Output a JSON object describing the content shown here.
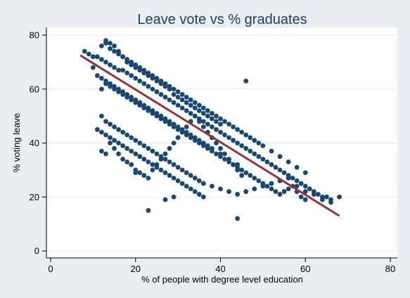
{
  "chart_data": {
    "type": "scatter",
    "title": "Leave vote vs % graduates",
    "xlabel": "% of people with degree level education",
    "ylabel": "% voting leave",
    "xlim": [
      0,
      80
    ],
    "ylim": [
      0,
      80
    ],
    "x_ticks": [
      "0",
      "20",
      "40",
      "60",
      "80"
    ],
    "y_ticks": [
      "0",
      "20",
      "40",
      "60",
      "80"
    ],
    "grid": true,
    "colors": {
      "points": "#1a476f",
      "fit_line": "#90353b",
      "background": "#e8eef2",
      "plot_background": "#ffffff"
    },
    "fit_line": {
      "x": [
        7,
        68
      ],
      "y": [
        72.5,
        13
      ]
    },
    "points_note_x": "x values",
    "series": [
      {
        "x": [
          8,
          9,
          10,
          11,
          12,
          13,
          14,
          15,
          16,
          17,
          18,
          19,
          20,
          21,
          22,
          23,
          24,
          25,
          26,
          27,
          28,
          29,
          30,
          31,
          32,
          33,
          34,
          35,
          36,
          37,
          38,
          39,
          40,
          41,
          42,
          43,
          44,
          45,
          46,
          47,
          48,
          49,
          50,
          51,
          52,
          53,
          54,
          55,
          56,
          57,
          58,
          59,
          60,
          61,
          62,
          63,
          64,
          65,
          66,
          68,
          10,
          12,
          13,
          14,
          15,
          16,
          17,
          18,
          19,
          20,
          21,
          22,
          23,
          24,
          25,
          26,
          27,
          28,
          29,
          30,
          31,
          32,
          33,
          34,
          35,
          36,
          37,
          38,
          39,
          40,
          41,
          42,
          43,
          44,
          45,
          46,
          47,
          48,
          49,
          50,
          52,
          54,
          56,
          58,
          60,
          11,
          12,
          13,
          14,
          15,
          16,
          17,
          18,
          19,
          20,
          21,
          22,
          23,
          24,
          25,
          26,
          27,
          28,
          29,
          30,
          31,
          32,
          33,
          34,
          35,
          36,
          37,
          38,
          40,
          42,
          44,
          12,
          13,
          14,
          15,
          16,
          17,
          18,
          19,
          20,
          21,
          22,
          23,
          24,
          25,
          26,
          27,
          28,
          29,
          30,
          31,
          32,
          33,
          34,
          35,
          36,
          38,
          40,
          42,
          44,
          46,
          48,
          50,
          52,
          54,
          56,
          58,
          60,
          62,
          64,
          66,
          12,
          13,
          14,
          15,
          16,
          17,
          18,
          19,
          20,
          21,
          22,
          23,
          24,
          25,
          26,
          27,
          28,
          29,
          30,
          31,
          32,
          33,
          34,
          35,
          36,
          37,
          38,
          39,
          40,
          41,
          42,
          43,
          44,
          45,
          46,
          47,
          48,
          49,
          50,
          51,
          52,
          53,
          54,
          55,
          56,
          57,
          58,
          59,
          60,
          13,
          14,
          15,
          16,
          17,
          18,
          19,
          20,
          21,
          22,
          23,
          24,
          25,
          26,
          27,
          28,
          29,
          30,
          31,
          32,
          33,
          34,
          35,
          36,
          37,
          38,
          39,
          40,
          14,
          15,
          16,
          17,
          18,
          19,
          20,
          21,
          22,
          23,
          24,
          25,
          26,
          27,
          28,
          29,
          30,
          31,
          32,
          33,
          34,
          35,
          36,
          37,
          38,
          39,
          40,
          41,
          42,
          43,
          44,
          45,
          11,
          12,
          13,
          14,
          15,
          16,
          17,
          18,
          19,
          20,
          21,
          22,
          23,
          24,
          25,
          26,
          27,
          28,
          29,
          30,
          31,
          32,
          33,
          34,
          35,
          36,
          20,
          23,
          27,
          29,
          44,
          46,
          13,
          12
        ],
        "y": [
          74,
          73,
          72,
          72,
          71,
          70,
          69,
          68,
          67,
          67,
          66,
          65,
          64,
          63,
          62,
          61,
          60,
          59,
          58,
          57,
          56,
          55,
          54,
          53,
          52,
          51,
          50,
          49,
          48,
          47,
          46,
          45,
          44,
          43,
          42,
          41,
          40,
          39,
          38,
          37,
          36,
          35,
          34,
          33,
          32,
          31,
          30,
          29,
          28,
          27,
          26,
          25,
          24,
          23,
          22,
          21,
          20,
          20,
          19,
          20,
          68,
          76,
          77,
          75,
          74,
          73,
          72,
          71,
          70,
          69,
          68,
          67,
          66,
          65,
          64,
          63,
          62,
          61,
          60,
          59,
          58,
          57,
          56,
          55,
          54,
          53,
          52,
          51,
          50,
          49,
          48,
          47,
          46,
          45,
          44,
          43,
          42,
          41,
          40,
          39,
          37,
          35,
          33,
          31,
          29,
          65,
          64,
          63,
          62,
          61,
          60,
          59,
          58,
          57,
          56,
          55,
          54,
          53,
          52,
          51,
          50,
          49,
          48,
          47,
          46,
          45,
          44,
          43,
          42,
          41,
          40,
          39,
          38,
          36,
          34,
          32,
          50,
          48,
          47,
          46,
          45,
          44,
          43,
          42,
          41,
          40,
          39,
          38,
          37,
          36,
          35,
          34,
          33,
          32,
          31,
          30,
          29,
          28,
          27,
          26,
          25,
          24,
          23,
          22,
          21,
          22,
          23,
          24,
          25,
          26,
          27,
          24,
          22,
          21,
          19,
          18,
          60,
          62,
          61,
          60,
          59,
          58,
          57,
          56,
          55,
          54,
          53,
          52,
          51,
          50,
          49,
          48,
          47,
          46,
          45,
          44,
          43,
          42,
          41,
          40,
          39,
          38,
          37,
          36,
          35,
          34,
          33,
          32,
          31,
          30,
          29,
          28,
          27,
          26,
          25,
          24,
          23,
          22,
          21,
          22,
          23,
          24,
          22,
          20,
          19,
          78,
          77,
          76,
          74,
          72,
          70,
          69,
          68,
          67,
          66,
          65,
          64,
          63,
          62,
          61,
          60,
          58,
          57,
          56,
          55,
          54,
          53,
          52,
          51,
          50,
          49,
          48,
          47,
          40,
          38,
          36,
          34,
          33,
          32,
          30,
          29,
          28,
          27,
          30,
          32,
          34,
          36,
          38,
          40,
          42,
          44,
          46,
          48,
          50,
          48,
          46,
          44,
          42,
          40,
          38,
          36,
          34,
          32,
          30,
          28,
          45,
          44,
          43,
          42,
          41,
          40,
          39,
          38,
          37,
          36,
          35,
          34,
          33,
          32,
          31,
          30,
          29,
          28,
          27,
          26,
          25,
          24,
          23,
          22,
          21,
          20,
          29,
          15,
          19,
          20,
          12,
          63,
          36,
          37
        ]
      }
    ]
  }
}
